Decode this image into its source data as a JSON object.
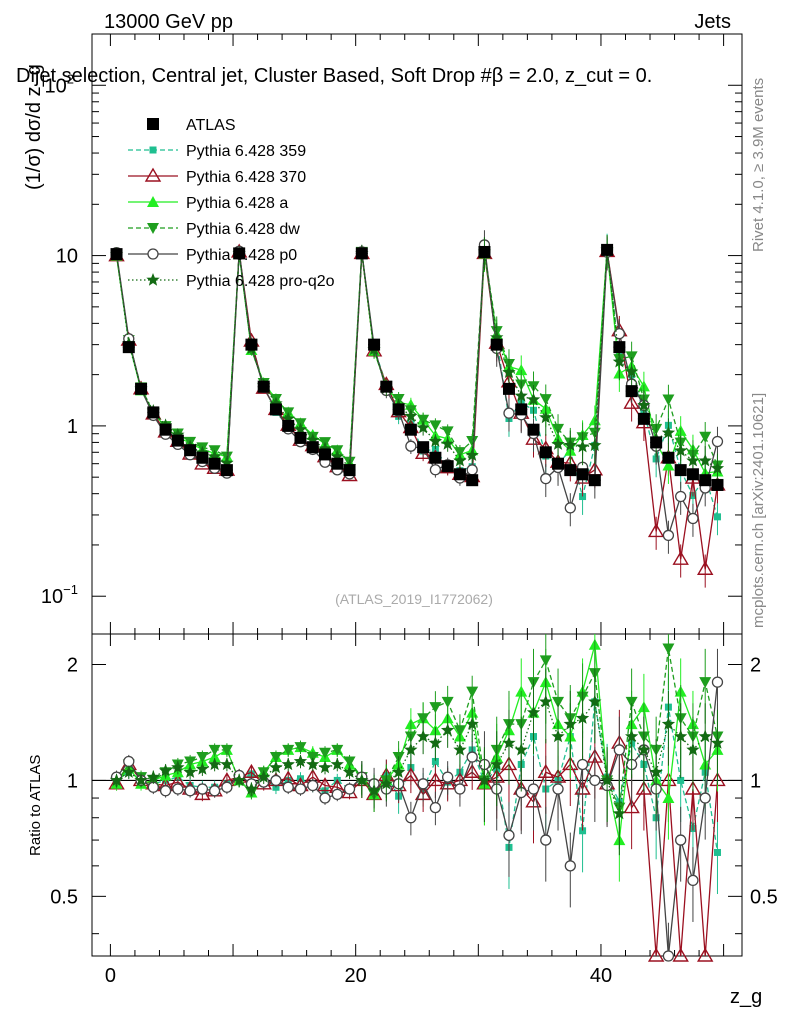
{
  "header": {
    "energy_label": "13000 GeV pp",
    "category_label": "Jets",
    "title": "Dijet selection, Central jet, Cluster Based, Soft Drop #β = 2.0, z_cut = 0.",
    "side_label_rivet": "Rivet 4.1.0, ≥ 3.9M events",
    "side_label_mcplots": "mcplots.cern.ch [arXiv:2401.10621]",
    "analysis_id": "(ATLAS_2019_I1772062)"
  },
  "axes": {
    "ylabel_main": "(1/σ) dσ/d z_g",
    "ylabel_ratio": "Ratio to ATLAS",
    "xlabel": "z_g",
    "x_ticks": [
      "0",
      "20",
      "40"
    ],
    "y_ticks_main": [
      "10^-1",
      "1",
      "10",
      "10^2"
    ],
    "y_ticks_ratio": [
      "0.5",
      "1",
      "2"
    ]
  },
  "legend": [
    {
      "label": "ATLAS",
      "color": "#000000",
      "marker": "square-filled",
      "line": "none"
    },
    {
      "label": "Pythia 6.428 359",
      "color": "#1fbf90",
      "marker": "square-small",
      "line": "dashed"
    },
    {
      "label": "Pythia 6.428 370",
      "color": "#9b1020",
      "marker": "triangle-open",
      "line": "solid"
    },
    {
      "label": "Pythia 6.428 a",
      "color": "#22ee22",
      "marker": "triangle-filled",
      "line": "solid"
    },
    {
      "label": "Pythia 6.428 dw",
      "color": "#1e9e1e",
      "marker": "triangle-down",
      "line": "dashed"
    },
    {
      "label": "Pythia 6.428 p0",
      "color": "#444444",
      "marker": "circle-open",
      "line": "solid"
    },
    {
      "label": "Pythia 6.428 pro-q2o",
      "color": "#136b13",
      "marker": "star",
      "line": "dotted"
    }
  ],
  "chart_data": {
    "type": "line",
    "title": "Dijet selection, Central jet, Cluster Based, Soft Drop #β = 2.0, z_cut = 0.",
    "xlabel": "z_g",
    "ylabel": "(1/σ) dσ/d z_g",
    "yscale": "log",
    "xlim": [
      -1.5,
      51.5
    ],
    "ylim": [
      0.06,
      200
    ],
    "ratio_ylim": [
      0.35,
      2.4
    ],
    "x": [
      0.5,
      1.5,
      2.5,
      3.5,
      4.5,
      5.5,
      6.5,
      7.5,
      8.5,
      9.5,
      10.5,
      11.5,
      12.5,
      13.5,
      14.5,
      15.5,
      16.5,
      17.5,
      18.5,
      19.5,
      20.5,
      21.5,
      22.5,
      23.5,
      24.5,
      25.5,
      26.5,
      27.5,
      28.5,
      29.5,
      30.5,
      31.5,
      32.5,
      33.5,
      34.5,
      35.5,
      36.5,
      37.5,
      38.5,
      39.5,
      40.5,
      41.5,
      42.5,
      43.5,
      44.5,
      45.5,
      46.5,
      47.5,
      48.5,
      49.5
    ],
    "atlas": [
      10.2,
      2.9,
      1.65,
      1.2,
      0.95,
      0.82,
      0.72,
      0.65,
      0.6,
      0.55,
      10.3,
      3.0,
      1.7,
      1.25,
      1.0,
      0.85,
      0.75,
      0.68,
      0.6,
      0.55,
      10.3,
      3.0,
      1.7,
      1.25,
      0.95,
      0.75,
      0.65,
      0.58,
      0.52,
      0.48,
      10.5,
      3.0,
      1.65,
      1.25,
      0.95,
      0.7,
      0.6,
      0.55,
      0.52,
      0.48,
      10.8,
      2.9,
      1.6,
      1.1,
      0.8,
      0.65,
      0.55,
      0.52,
      0.48,
      0.45
    ],
    "series": [
      {
        "name": "Pythia 6.428 359",
        "ratio": [
          0.99,
          1.06,
          1.0,
          0.98,
          1.0,
          1.02,
          0.97,
          0.96,
          0.96,
          0.98,
          1.0,
          1.04,
          1.01,
          0.96,
          1.0,
          1.01,
          0.97,
          0.94,
          1.0,
          0.95,
          1.01,
          0.95,
          1.03,
          0.91,
          1.08,
          0.95,
          1.12,
          0.99,
          1.05,
          1.2,
          0.99,
          1.07,
          0.67,
          1.1,
          1.3,
          0.95,
          1.0,
          1.3,
          0.74,
          1.6,
          1.02,
          0.88,
          1.25,
          1.1,
          0.8,
          1.55,
          1.0,
          0.75,
          1.05,
          0.65
        ]
      },
      {
        "name": "Pythia 6.428 370",
        "ratio": [
          0.98,
          1.1,
          1.0,
          0.98,
          0.97,
          0.99,
          0.95,
          0.92,
          0.94,
          1.0,
          1.02,
          1.05,
          0.98,
          1.0,
          1.01,
          0.97,
          1.02,
          0.97,
          0.96,
          0.93,
          1.0,
          0.92,
          1.03,
          0.97,
          1.03,
          0.92,
          1.0,
          0.98,
          1.0,
          1.05,
          0.98,
          1.02,
          1.1,
          0.95,
          0.88,
          1.05,
          1.02,
          1.1,
          0.95,
          1.15,
          0.98,
          1.25,
          0.85,
          0.95,
          0.3,
          1.0,
          0.3,
          0.95,
          0.3,
          1.0
        ]
      },
      {
        "name": "Pythia 6.428 a",
        "ratio": [
          0.98,
          1.08,
          0.98,
          1.0,
          1.03,
          1.05,
          1.1,
          1.12,
          1.15,
          1.2,
          1.0,
          0.93,
          1.05,
          1.15,
          1.2,
          1.22,
          1.18,
          1.15,
          1.2,
          1.1,
          1.02,
          0.92,
          1.0,
          1.1,
          1.4,
          1.45,
          1.35,
          1.45,
          1.3,
          1.5,
          0.98,
          1.15,
          1.35,
          1.7,
          1.5,
          1.8,
          1.4,
          1.3,
          1.7,
          2.25,
          1.0,
          0.7,
          1.4,
          1.55,
          1.0,
          0.9,
          1.7,
          1.4,
          1.1,
          1.2
        ]
      },
      {
        "name": "Pythia 6.428 dw",
        "ratio": [
          0.99,
          1.1,
          1.02,
          1.0,
          1.05,
          1.1,
          1.12,
          1.15,
          1.2,
          1.2,
          1.0,
          0.93,
          1.05,
          1.15,
          1.2,
          1.22,
          1.15,
          1.18,
          1.2,
          1.12,
          1.02,
          0.92,
          1.0,
          1.15,
          1.3,
          1.45,
          1.55,
          1.6,
          1.35,
          1.7,
          1.0,
          1.2,
          1.4,
          1.4,
          1.8,
          2.05,
          1.6,
          1.45,
          1.65,
          1.9,
          1.0,
          0.85,
          1.6,
          1.3,
          1.2,
          2.2,
          1.45,
          1.3,
          1.8,
          1.3
        ]
      },
      {
        "name": "Pythia 6.428 p0",
        "ratio": [
          1.02,
          1.12,
          1.0,
          0.96,
          0.94,
          0.95,
          0.94,
          0.95,
          0.94,
          0.96,
          1.03,
          0.98,
          0.99,
          1.0,
          0.96,
          0.95,
          0.97,
          0.9,
          0.92,
          0.95,
          1.02,
          0.98,
          0.95,
          0.98,
          0.8,
          0.98,
          0.85,
          1.02,
          0.95,
          1.15,
          1.1,
          0.95,
          0.72,
          0.93,
          0.95,
          0.7,
          0.95,
          0.6,
          1.1,
          1.0,
          0.97,
          1.2,
          1.1,
          1.2,
          0.95,
          0.35,
          0.7,
          0.55,
          0.9,
          1.8
        ]
      },
      {
        "name": "Pythia 6.428 pro-q2o",
        "ratio": [
          1.0,
          1.05,
          1.0,
          1.02,
          1.06,
          1.08,
          1.05,
          1.07,
          1.1,
          1.1,
          1.0,
          0.95,
          1.02,
          1.08,
          1.1,
          1.12,
          1.1,
          1.08,
          1.1,
          1.05,
          1.0,
          0.94,
          0.98,
          1.05,
          1.2,
          1.3,
          1.25,
          1.35,
          1.2,
          1.4,
          1.0,
          1.1,
          1.25,
          1.2,
          1.5,
          1.6,
          1.3,
          1.4,
          1.45,
          1.6,
          1.0,
          0.82,
          1.3,
          1.2,
          1.05,
          1.4,
          1.3,
          1.2,
          1.3,
          1.25
        ]
      }
    ]
  }
}
